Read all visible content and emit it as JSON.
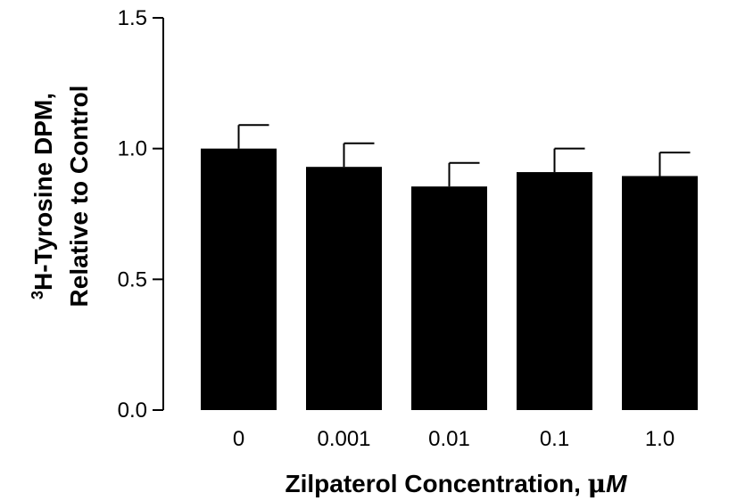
{
  "chart_data": {
    "type": "bar",
    "categories": [
      "0",
      "0.001",
      "0.01",
      "0.1",
      "1.0"
    ],
    "values": [
      1.0,
      0.93,
      0.855,
      0.91,
      0.895
    ],
    "errors": [
      0.09,
      0.09,
      0.09,
      0.09,
      0.09
    ],
    "xlabel_main": "Zilpaterol Concentration, ",
    "xlabel_mu": "μ",
    "xlabel_unit": "M",
    "ylabel_line1_sup": "3",
    "ylabel_line1": "H-Tyrosine DPM,",
    "ylabel_line2": "Relative to Control",
    "ylim": [
      0,
      1.5
    ],
    "yticks": [
      0.0,
      0.5,
      1.0,
      1.5
    ],
    "ytick_labels": [
      "0.0",
      "0.5",
      "1.0",
      "1.5"
    ],
    "grid": false,
    "bar_color": "#000000"
  }
}
